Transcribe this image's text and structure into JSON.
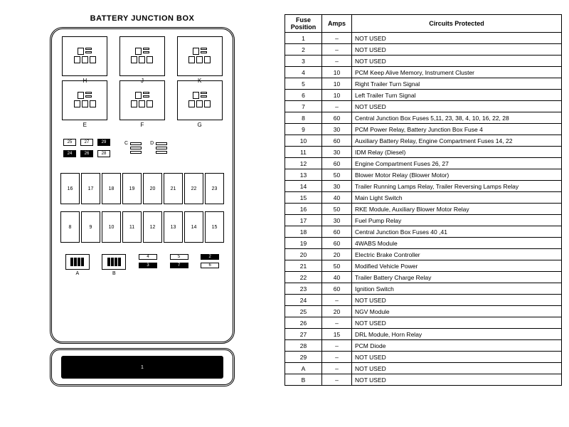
{
  "diagram": {
    "title": "BATTERY JUNCTION BOX",
    "relay_top": [
      "H",
      "J",
      "K"
    ],
    "relay_mid": [
      "E",
      "F",
      "G"
    ],
    "small_fuses_row1": [
      {
        "n": "25",
        "filled": false
      },
      {
        "n": "27",
        "filled": false
      },
      {
        "n": "29",
        "filled": true
      }
    ],
    "small_mini": [
      "C",
      "D"
    ],
    "small_fuses_row2": [
      {
        "n": "24",
        "filled": true
      },
      {
        "n": "26",
        "filled": true
      },
      {
        "n": "28",
        "filled": false
      }
    ],
    "big_row1": [
      "16",
      "17",
      "18",
      "19",
      "20",
      "21",
      "22",
      "23"
    ],
    "big_row2": [
      "8",
      "9",
      "10",
      "11",
      "12",
      "13",
      "14",
      "15"
    ],
    "bottom_relays": [
      "A",
      "B"
    ],
    "bottom_small": [
      {
        "n": "4",
        "solid": false
      },
      {
        "n": "3",
        "solid": true
      },
      {
        "n": "5",
        "solid": false
      },
      {
        "n": "7",
        "solid": true
      },
      {
        "n": "2",
        "solid": true
      },
      {
        "n": "6",
        "solid": false
      }
    ],
    "strip_label": "1"
  },
  "table": {
    "headers": [
      "Fuse Position",
      "Amps",
      "Circuits Protected"
    ],
    "rows": [
      {
        "pos": "1",
        "amps": "–",
        "desc": "NOT USED"
      },
      {
        "pos": "2",
        "amps": "–",
        "desc": "NOT USED"
      },
      {
        "pos": "3",
        "amps": "–",
        "desc": "NOT USED"
      },
      {
        "pos": "4",
        "amps": "10",
        "desc": "PCM Keep Alive Memory, Instrument Cluster"
      },
      {
        "pos": "5",
        "amps": "10",
        "desc": "Right Trailer Turn Signal"
      },
      {
        "pos": "6",
        "amps": "10",
        "desc": "Left Trailer Turn Signal"
      },
      {
        "pos": "7",
        "amps": "–",
        "desc": "NOT USED"
      },
      {
        "pos": "8",
        "amps": "60",
        "desc": "Central Junction Box Fuses 5,11, 23, 38, 4, 10, 16, 22, 28"
      },
      {
        "pos": "9",
        "amps": "30",
        "desc": "PCM Power Relay, Battery Junction Box Fuse 4"
      },
      {
        "pos": "10",
        "amps": "60",
        "desc": "Auxiliary Battery Relay, Engine Compartment Fuses 14, 22"
      },
      {
        "pos": "11",
        "amps": "30",
        "desc": "IDM Relay (Diesel)"
      },
      {
        "pos": "12",
        "amps": "60",
        "desc": "Engine Compartment Fuses 26, 27"
      },
      {
        "pos": "13",
        "amps": "50",
        "desc": "Blower Motor Relay (Blower Motor)"
      },
      {
        "pos": "14",
        "amps": "30",
        "desc": "Trailer Running Lamps Relay, Trailer Reversing Lamps Relay"
      },
      {
        "pos": "15",
        "amps": "40",
        "desc": "Main Light Switch"
      },
      {
        "pos": "16",
        "amps": "50",
        "desc": "RKE Module, Auxiliary Blower Motor Relay"
      },
      {
        "pos": "17",
        "amps": "30",
        "desc": "Fuel Pump Relay"
      },
      {
        "pos": "18",
        "amps": "60",
        "desc": "Central Junction Box Fuses 40 ,41"
      },
      {
        "pos": "19",
        "amps": "60",
        "desc": "4WABS Module"
      },
      {
        "pos": "20",
        "amps": "20",
        "desc": "Electric Brake Controller"
      },
      {
        "pos": "21",
        "amps": "50",
        "desc": "Modified Vehicle Power"
      },
      {
        "pos": "22",
        "amps": "40",
        "desc": "Trailer Battery Charge Relay"
      },
      {
        "pos": "23",
        "amps": "60",
        "desc": "Ignition Switch"
      },
      {
        "pos": "24",
        "amps": "–",
        "desc": "NOT USED"
      },
      {
        "pos": "25",
        "amps": "20",
        "desc": "NGV Module"
      },
      {
        "pos": "26",
        "amps": "–",
        "desc": "NOT USED"
      },
      {
        "pos": "27",
        "amps": "15",
        "desc": "DRL Module, Horn Relay"
      },
      {
        "pos": "28",
        "amps": "–",
        "desc": "PCM Diode"
      },
      {
        "pos": "29",
        "amps": "–",
        "desc": "NOT USED"
      },
      {
        "pos": "A",
        "amps": "–",
        "desc": "NOT USED"
      },
      {
        "pos": "B",
        "amps": "–",
        "desc": "NOT USED"
      }
    ]
  }
}
